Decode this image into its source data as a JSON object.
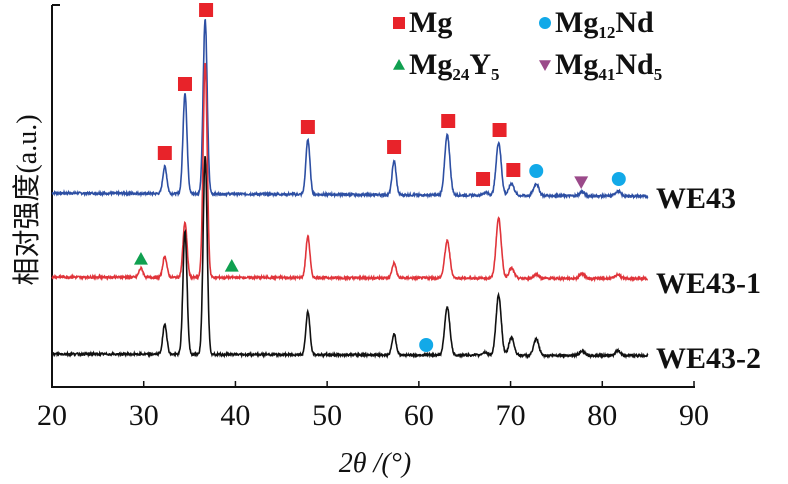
{
  "chart_data": {
    "type": "line",
    "title": "",
    "xlabel": "2θ /(°)",
    "ylabel": "相对强度(a.u.)",
    "xlim": [
      20,
      90
    ],
    "ylim": [
      0,
      382
    ],
    "xticks": [
      20,
      30,
      40,
      50,
      60,
      70,
      80,
      90
    ],
    "x_range_measured": [
      20,
      85
    ],
    "grid": false,
    "legend_placement": "top-right",
    "series": [
      {
        "name": "WE43",
        "color": "#2d4fa3",
        "baseline": 194,
        "peaks": [
          [
            32.3,
            27
          ],
          [
            34.5,
            100
          ],
          [
            36.7,
            174
          ],
          [
            47.9,
            55
          ],
          [
            57.3,
            34
          ],
          [
            63.1,
            60
          ],
          [
            67.3,
            3
          ],
          [
            68.7,
            53
          ],
          [
            70.1,
            12
          ],
          [
            72.8,
            12
          ],
          [
            77.8,
            4
          ],
          [
            81.7,
            5
          ]
        ]
      },
      {
        "name": "WE43-1",
        "color": "#e0343a",
        "baseline": 110,
        "peaks": [
          [
            29.7,
            9
          ],
          [
            32.3,
            21
          ],
          [
            34.5,
            55
          ],
          [
            36.7,
            215
          ],
          [
            47.9,
            41
          ],
          [
            57.3,
            15
          ],
          [
            63.1,
            37
          ],
          [
            68.7,
            60
          ],
          [
            70.1,
            10
          ],
          [
            72.8,
            4
          ],
          [
            77.8,
            5
          ],
          [
            81.7,
            4
          ]
        ]
      },
      {
        "name": "WE43-2",
        "color": "#111111",
        "baseline": 33,
        "peaks": [
          [
            32.3,
            30
          ],
          [
            34.5,
            123
          ],
          [
            36.7,
            198
          ],
          [
            47.9,
            43
          ],
          [
            57.3,
            21
          ],
          [
            63.1,
            48
          ],
          [
            67.2,
            3
          ],
          [
            68.7,
            60
          ],
          [
            70.1,
            18
          ],
          [
            72.8,
            16
          ],
          [
            77.8,
            4
          ],
          [
            81.7,
            5
          ]
        ]
      }
    ],
    "legend": [
      {
        "phase": "Mg",
        "main": "Mg",
        "sub1": "",
        "mid": "",
        "sub2": "",
        "marker": "square",
        "color": "#e8232a"
      },
      {
        "phase": "Mg12Nd",
        "main": "Mg",
        "sub1": "12",
        "mid": "Nd",
        "sub2": "",
        "marker": "circle",
        "color": "#12a9e8"
      },
      {
        "phase": "Mg24Y5",
        "main": "Mg",
        "sub1": "24",
        "mid": "Y",
        "sub2": "5",
        "marker": "triangle-up",
        "color": "#10a050"
      },
      {
        "phase": "Mg41Nd5",
        "main": "Mg",
        "sub1": "41",
        "mid": "Nd",
        "sub2": "5",
        "marker": "triangle-down",
        "color": "#9b4a8a"
      }
    ],
    "markers": [
      {
        "phase": "Mg",
        "x": 32.3,
        "y": 234
      },
      {
        "phase": "Mg",
        "x": 34.5,
        "y": 303
      },
      {
        "phase": "Mg",
        "x": 36.8,
        "y": 377
      },
      {
        "phase": "Mg",
        "x": 47.9,
        "y": 260
      },
      {
        "phase": "Mg",
        "x": 57.3,
        "y": 240
      },
      {
        "phase": "Mg",
        "x": 63.2,
        "y": 266
      },
      {
        "phase": "Mg",
        "x": 68.8,
        "y": 257
      },
      {
        "phase": "Mg",
        "x": 67.0,
        "y": 208
      },
      {
        "phase": "Mg",
        "x": 70.3,
        "y": 217
      },
      {
        "phase": "Mg12Nd",
        "x": 72.8,
        "y": 216
      },
      {
        "phase": "Mg12Nd",
        "x": 81.8,
        "y": 208
      },
      {
        "phase": "Mg12Nd",
        "x": 60.8,
        "y": 42
      },
      {
        "phase": "Mg41Nd5",
        "x": 77.7,
        "y": 205
      },
      {
        "phase": "Mg24Y5",
        "x": 29.7,
        "y": 128
      },
      {
        "phase": "Mg24Y5",
        "x": 39.6,
        "y": 121
      }
    ]
  }
}
